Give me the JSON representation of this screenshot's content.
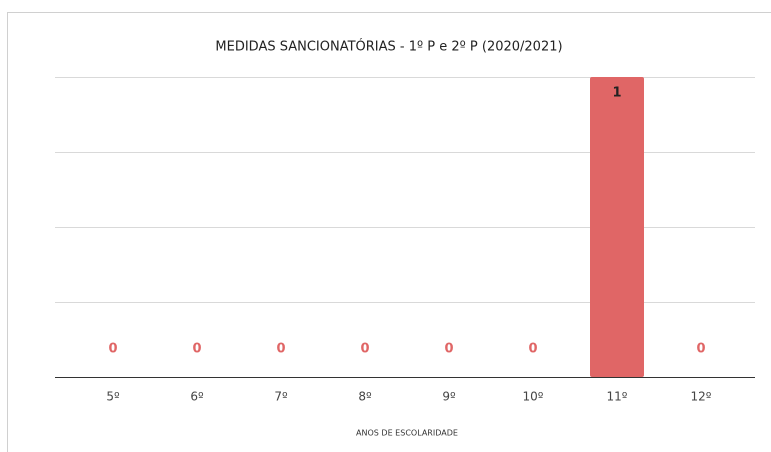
{
  "chart_data": {
    "type": "bar",
    "title": "MEDIDAS SANCIONATÓRIAS  -  1º P  e  2º P   (2020/2021)",
    "x_label": "ANOS DE ESCOLARIDADE",
    "categories": [
      "5º",
      "6º",
      "7º",
      "8º",
      "9º",
      "10º",
      "11º",
      "12º"
    ],
    "values": [
      0,
      0,
      0,
      0,
      0,
      0,
      1,
      0
    ],
    "color": "#e06666",
    "ylim": [
      0,
      1
    ],
    "yticks": [
      0,
      0.25,
      0.5,
      0.75,
      1
    ],
    "grid": true
  }
}
